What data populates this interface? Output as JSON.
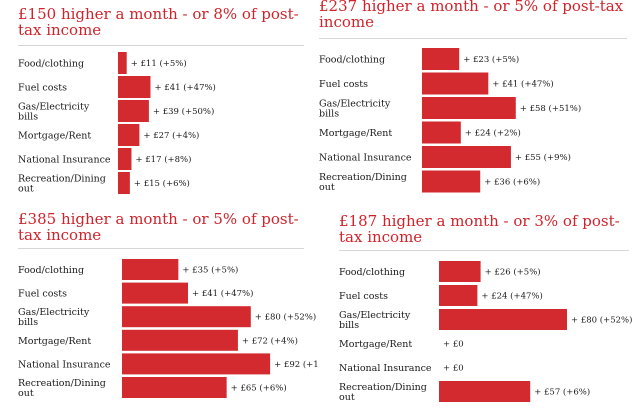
{
  "colors": {
    "bar": "#d32a2f",
    "title": "#d0232b",
    "text": "#1a1a1a",
    "rule": "#d6d6d6"
  },
  "chart_data": [
    {
      "type": "bar",
      "orientation": "horizontal",
      "title": "£150 higher a month - or 8% of post-tax income",
      "categories": [
        "Food/clothing",
        "Fuel costs",
        "Gas/Electricity bills",
        "Mortgage/Rent",
        "National Insurance",
        "Recreation/Dining out"
      ],
      "values": [
        11,
        41,
        39,
        27,
        17,
        15
      ],
      "data_labels": [
        "+ £11 (+5%)",
        "+ £41 (+47%)",
        "+ £39 (+50%)",
        "+ £27 (+4%)",
        "+ £17 (+8%)",
        "+ £15 (+6%)"
      ],
      "xlim": [
        0,
        92
      ]
    },
    {
      "type": "bar",
      "orientation": "horizontal",
      "title": "£237 higher a month - or 5% of post-tax income",
      "categories": [
        "Food/clothing",
        "Fuel costs",
        "Gas/Electricity bills",
        "Mortgage/Rent",
        "National Insurance",
        "Recreation/Dining out"
      ],
      "values": [
        23,
        41,
        58,
        24,
        55,
        36
      ],
      "data_labels": [
        "+ £23 (+5%)",
        "+ £41 (+47%)",
        "+ £58 (+51%)",
        "+ £24 (+2%)",
        "+ £55 (+9%)",
        "+ £36 (+6%)"
      ],
      "xlim": [
        0,
        92
      ]
    },
    {
      "type": "bar",
      "orientation": "horizontal",
      "title": "£385 higher a month - or 5% of post-tax income",
      "categories": [
        "Food/clothing",
        "Fuel costs",
        "Gas/Electricity bills",
        "Mortgage/Rent",
        "National Insurance",
        "Recreation/Dining out"
      ],
      "values": [
        35,
        41,
        80,
        72,
        92,
        65
      ],
      "data_labels": [
        "+ £35 (+5%)",
        "+ £41 (+47%)",
        "+ £80 (+52%)",
        "+ £72 (+4%)",
        "+ £92 (+1",
        "+ £65 (+6%)"
      ],
      "xlim": [
        0,
        92
      ]
    },
    {
      "type": "bar",
      "orientation": "horizontal",
      "title": "£187 higher a month - or 3% of post-tax income",
      "categories": [
        "Food/clothing",
        "Fuel costs",
        "Gas/Electricity bills",
        "Mortgage/Rent",
        "National Insurance",
        "Recreation/Dining out"
      ],
      "values": [
        26,
        24,
        80,
        0,
        0,
        57
      ],
      "data_labels": [
        "+ £26 (+5%)",
        "+ £24 (+47%)",
        "+ £80 (+52%)",
        "+ £0",
        "+ £0",
        "+ £57 (+6%)"
      ],
      "xlim": [
        0,
        92
      ]
    }
  ]
}
